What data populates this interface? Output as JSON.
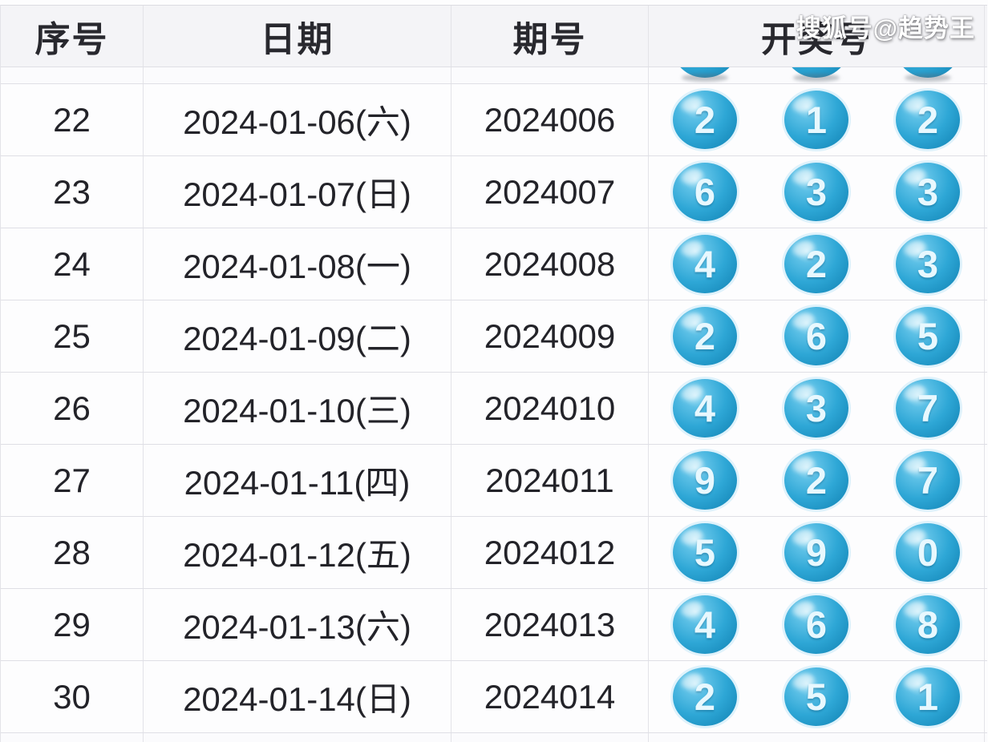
{
  "watermark": "搜狐号@趋势王",
  "table": {
    "columns": [
      "序号",
      "日期",
      "期号",
      "开奖号"
    ],
    "partial_top_row": {
      "visible_ball_bottoms": 3
    },
    "rows": [
      {
        "seq": "22",
        "date": "2024-01-06(六)",
        "issue": "2024006",
        "balls": [
          "2",
          "1",
          "2"
        ]
      },
      {
        "seq": "23",
        "date": "2024-01-07(日)",
        "issue": "2024007",
        "balls": [
          "6",
          "3",
          "3"
        ]
      },
      {
        "seq": "24",
        "date": "2024-01-08(一)",
        "issue": "2024008",
        "balls": [
          "4",
          "2",
          "3"
        ]
      },
      {
        "seq": "25",
        "date": "2024-01-09(二)",
        "issue": "2024009",
        "balls": [
          "2",
          "6",
          "5"
        ]
      },
      {
        "seq": "26",
        "date": "2024-01-10(三)",
        "issue": "2024010",
        "balls": [
          "4",
          "3",
          "7"
        ]
      },
      {
        "seq": "27",
        "date": "2024-01-11(四)",
        "issue": "2024011",
        "balls": [
          "9",
          "2",
          "7"
        ]
      },
      {
        "seq": "28",
        "date": "2024-01-12(五)",
        "issue": "2024012",
        "balls": [
          "5",
          "9",
          "0"
        ]
      },
      {
        "seq": "29",
        "date": "2024-01-13(六)",
        "issue": "2024013",
        "balls": [
          "4",
          "6",
          "8"
        ]
      },
      {
        "seq": "30",
        "date": "2024-01-14(日)",
        "issue": "2024014",
        "balls": [
          "2",
          "5",
          "1"
        ]
      }
    ]
  },
  "colors": {
    "ball_main": "#2ea7d6",
    "ball_dark": "#1486b7",
    "ball_highlight": "#b5e7f8",
    "ball_number": "#e8f8fe",
    "header_bg": "#f4f4f7",
    "row_bg": "#fdfdfe",
    "border": "#e3e3e8",
    "text": "#232329",
    "watermark_text": "#ffffff"
  }
}
